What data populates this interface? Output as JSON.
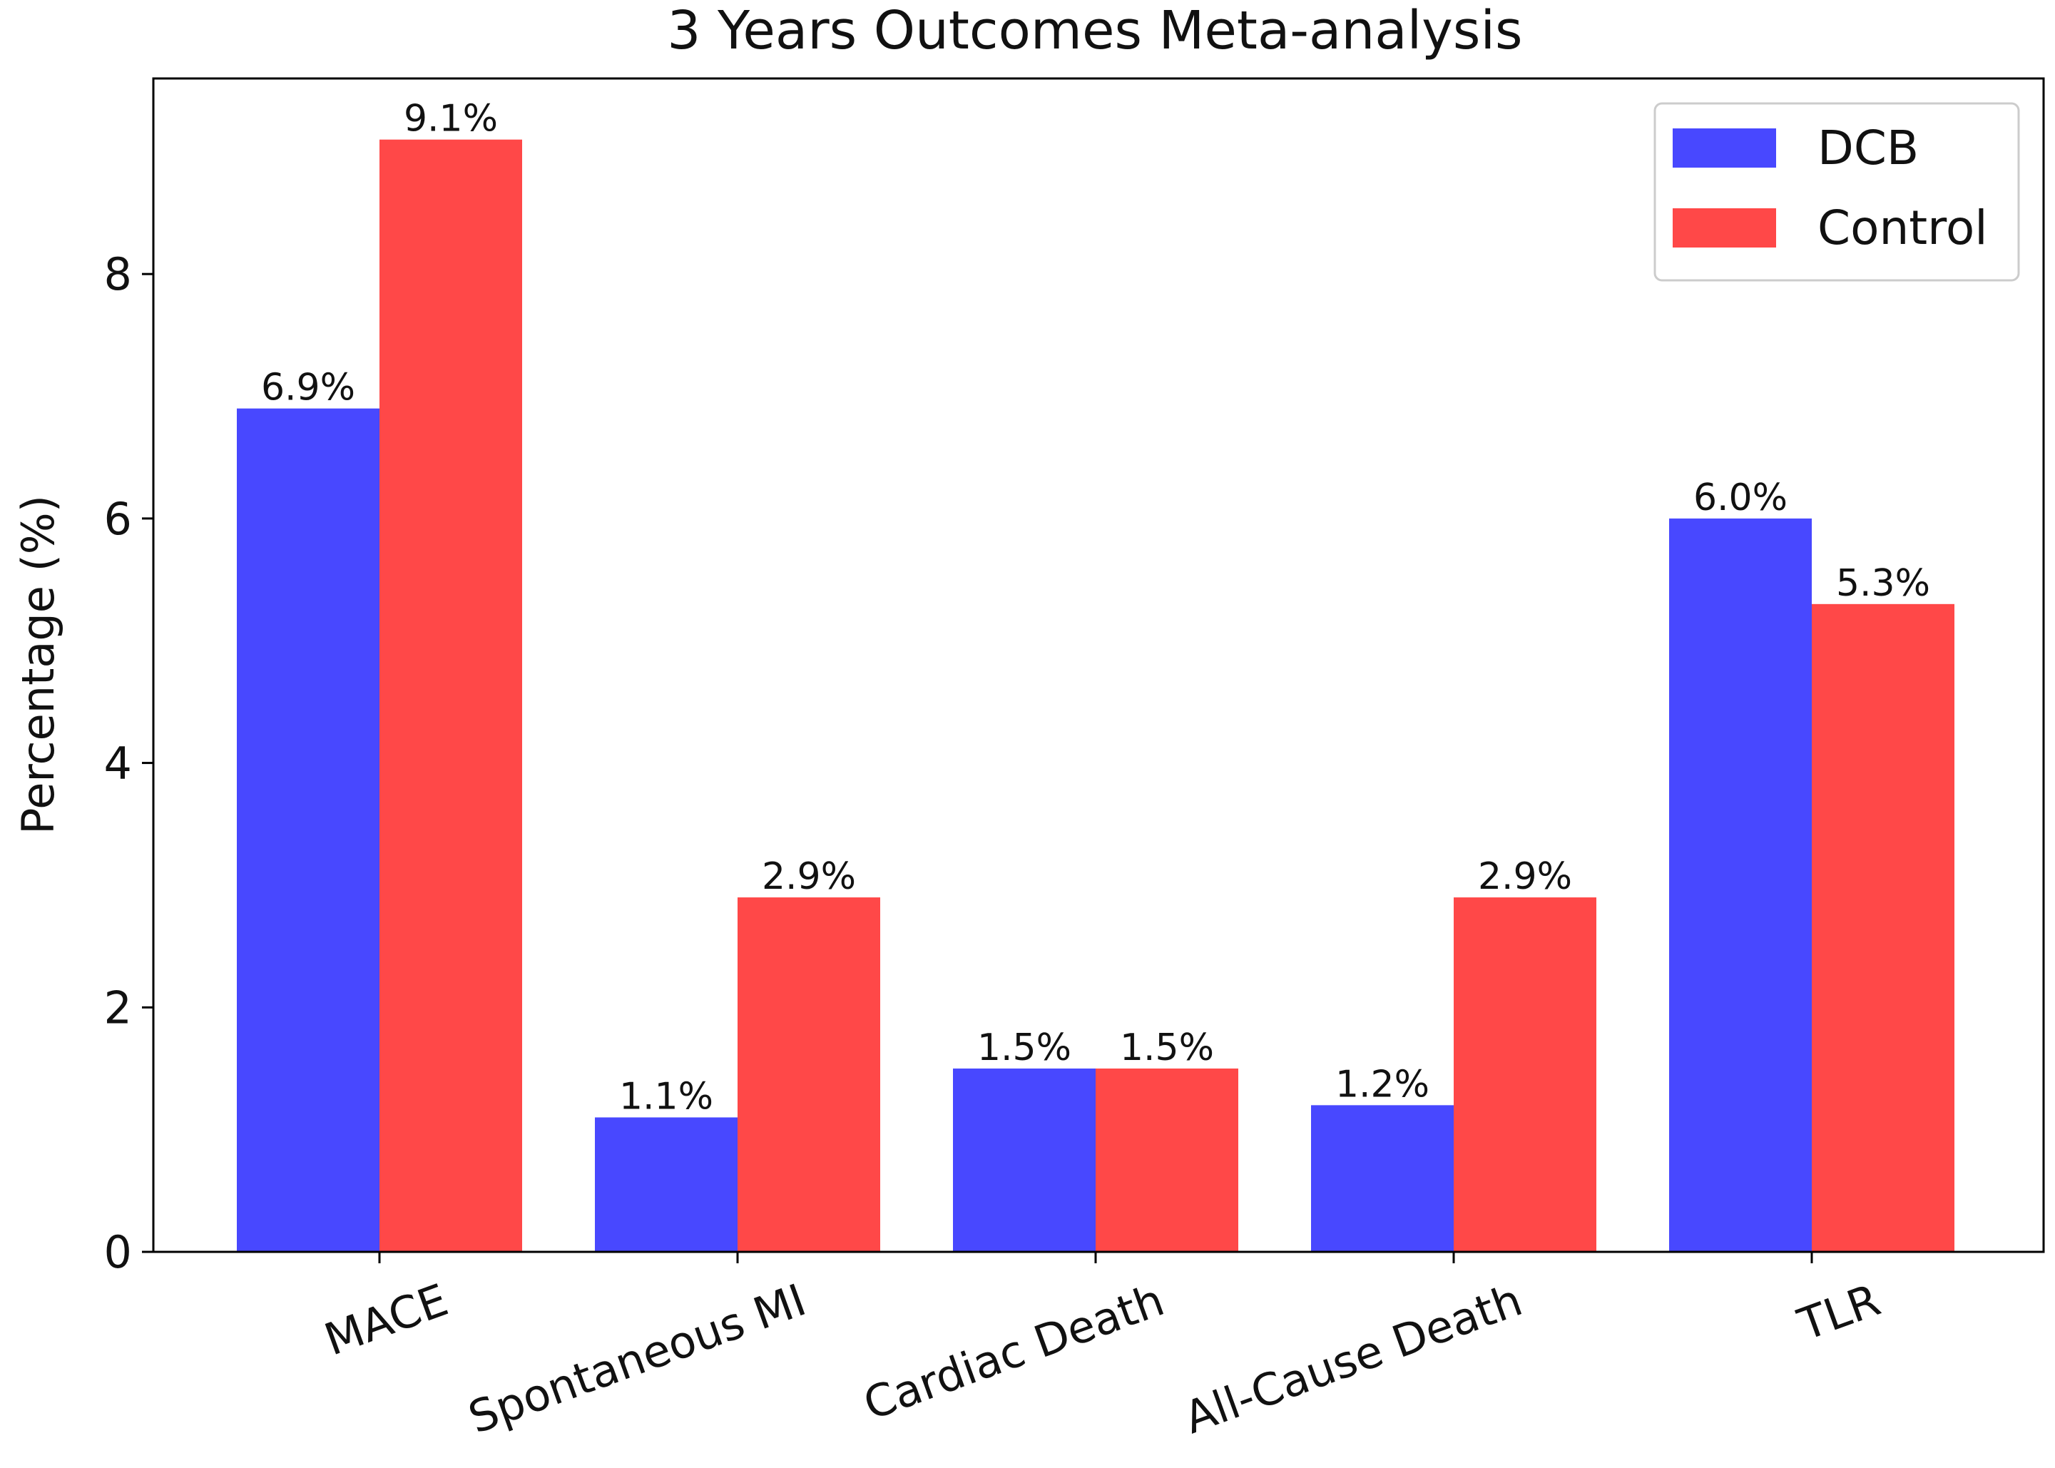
{
  "chart_data": {
    "type": "bar",
    "title": "3 Years Outcomes Meta-analysis",
    "xlabel": "",
    "ylabel": "Percentage (%)",
    "ylim": [
      0,
      9.6
    ],
    "yticks": [
      0,
      2,
      4,
      6,
      8
    ],
    "categories": [
      "MACE",
      "Spontaneous MI",
      "Cardiac Death",
      "All-Cause Death",
      "TLR"
    ],
    "series": [
      {
        "name": "DCB",
        "color": "#4848ff",
        "values": [
          6.9,
          1.1,
          1.5,
          1.2,
          6.0
        ],
        "labels": [
          "6.9%",
          "1.1%",
          "1.5%",
          "1.2%",
          "6.0%"
        ]
      },
      {
        "name": "Control",
        "color": "#ff4848",
        "values": [
          9.1,
          2.9,
          1.5,
          2.9,
          5.3
        ],
        "labels": [
          "9.1%",
          "2.9%",
          "1.5%",
          "2.9%",
          "5.3%"
        ]
      }
    ],
    "legend_position": "top-right",
    "grid": false
  }
}
